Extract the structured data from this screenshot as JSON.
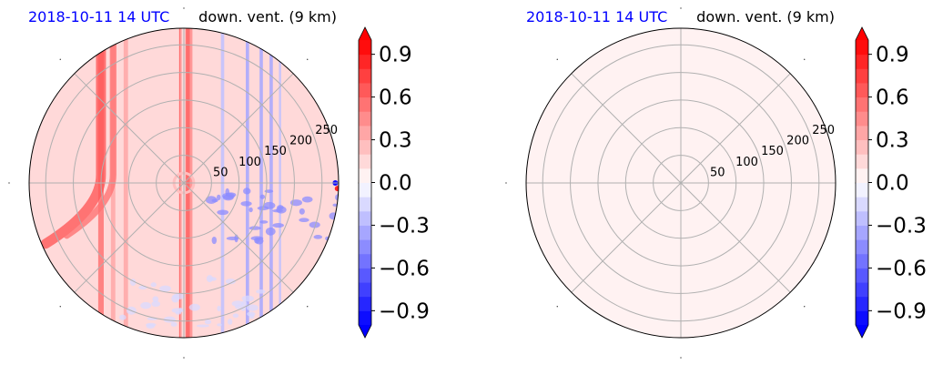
{
  "colorbar": {
    "ticks": [
      "0.9",
      "0.6",
      "0.3",
      "0.0",
      "−0.3",
      "−0.6",
      "−0.9"
    ],
    "tick_values": [
      0.9,
      0.6,
      0.3,
      0.0,
      -0.3,
      -0.6,
      -0.9
    ],
    "vmin": -1.0,
    "vmax": 1.0,
    "levels": 20,
    "colormap": "bwr",
    "extend": "both"
  },
  "colors": {
    "time_label": "#0000ff",
    "grid": "#b0b0b0",
    "positive": "#ff0000",
    "negative": "#0000ff"
  },
  "chart_data": [
    {
      "type": "heatmap",
      "projection": "polar",
      "time_label": "2018-10-11 14 UTC",
      "title": "down. vent. (9 km)",
      "radial_ticks": [
        "50",
        "100",
        "150",
        "200",
        "250"
      ],
      "radial_tick_values": [
        50,
        100,
        150,
        200,
        250
      ],
      "rlim": [
        0,
        280
      ],
      "grid": true,
      "angular_gridlines_deg": [
        0,
        45,
        90,
        135,
        180,
        225,
        270,
        315
      ],
      "background_value": 0.1,
      "features": [
        {
          "kind": "vertical_streak",
          "x": -7,
          "half_width": 1.5,
          "value": 0.6
        },
        {
          "kind": "vertical_streak",
          "x": 7,
          "half_width": 4,
          "value": 0.6
        },
        {
          "kind": "vertical_streak",
          "x": 13,
          "half_width": 2.5,
          "value": 0.45
        },
        {
          "kind": "vertical_streak",
          "x": -0.8,
          "half_width": 2,
          "value": 0.2
        },
        {
          "kind": "vertical_streak",
          "x": 2.5,
          "half_width": 1,
          "value": 0.25
        },
        {
          "kind": "vertical_streak",
          "x": -150,
          "half_width": 5,
          "value": 0.5
        },
        {
          "kind": "vertical_streak",
          "x": -128,
          "half_width": 4,
          "value": 0.4
        },
        {
          "kind": "vertical_streak",
          "x": -105,
          "half_width": 4,
          "value": 0.3
        },
        {
          "kind": "vertical_streak",
          "x": 70,
          "half_width": 3,
          "value": -0.25
        },
        {
          "kind": "vertical_streak",
          "x": 115,
          "half_width": 3,
          "value": -0.35
        },
        {
          "kind": "vertical_streak",
          "x": 140,
          "half_width": 3,
          "value": -0.3
        },
        {
          "kind": "vertical_streak",
          "x": 158,
          "half_width": 3,
          "value": -0.35
        },
        {
          "kind": "vertical_streak",
          "x": 174,
          "half_width": 2,
          "value": -0.25
        },
        {
          "kind": "vertical_streak",
          "x": -5,
          "half_width": 1.5,
          "value": 0.35
        },
        {
          "kind": "ring",
          "r": 18,
          "value": 0.25
        },
        {
          "kind": "band_curve",
          "x0": -150,
          "y0": 15,
          "x1": -250,
          "y1": -110,
          "width": 9,
          "value": 0.65
        },
        {
          "kind": "band_curve",
          "x0": -128,
          "y0": 15,
          "x1": -212,
          "y1": -95,
          "width": 6,
          "value": 0.5
        },
        {
          "kind": "blob_field",
          "x0": 40,
          "x1": 280,
          "y0": -10,
          "y1": -110,
          "value": -0.4
        },
        {
          "kind": "blob_field",
          "x0": -120,
          "x1": 150,
          "y0": -170,
          "y1": -260,
          "value": -0.12
        },
        {
          "kind": "dot",
          "x": 274,
          "y": 0,
          "value": -0.9
        },
        {
          "kind": "dot",
          "x": 278,
          "y": -10,
          "value": 0.9
        }
      ]
    },
    {
      "type": "heatmap",
      "projection": "polar",
      "time_label": "2018-10-11 14 UTC",
      "title": "down. vent. (9 km)",
      "radial_ticks": [
        "50",
        "100",
        "150",
        "200",
        "250"
      ],
      "radial_tick_values": [
        50,
        100,
        150,
        200,
        250
      ],
      "rlim": [
        0,
        280
      ],
      "grid": true,
      "angular_gridlines_deg": [
        0,
        45,
        90,
        135,
        180,
        225,
        270,
        315
      ],
      "background_value": 0.05,
      "features": []
    }
  ]
}
